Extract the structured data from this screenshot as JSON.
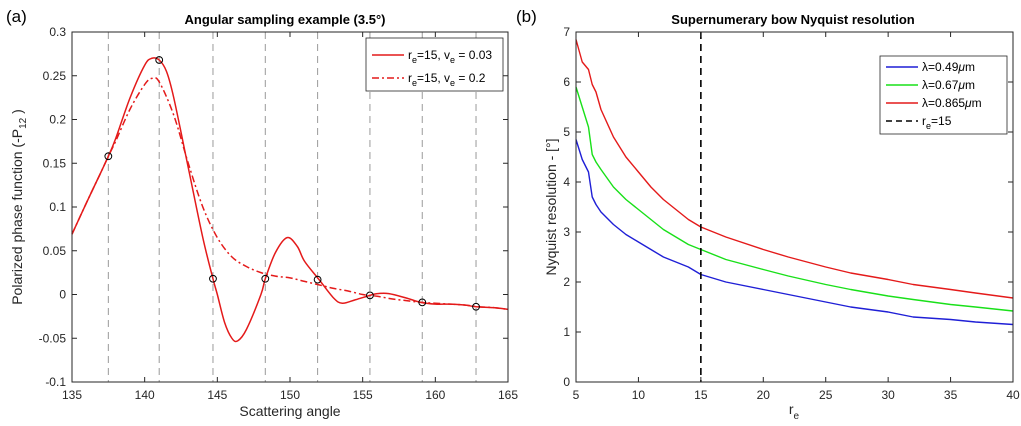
{
  "chart_data": [
    {
      "panel_label": "(a)",
      "type": "line",
      "title": "Angular sampling example (3.5°)",
      "xlabel": "Scattering angle",
      "ylabel_main": "Polarized phase function (-P",
      "ylabel_sub": "12",
      "ylabel_end": " )",
      "xlim": [
        135,
        165
      ],
      "ylim": [
        -0.1,
        0.3
      ],
      "xticks": [
        135,
        140,
        145,
        150,
        155,
        160,
        165
      ],
      "yticks": [
        -0.1,
        -0.05,
        0,
        0.05,
        0.1,
        0.15,
        0.2,
        0.25,
        0.3
      ],
      "ytick_labels": [
        "-0.1",
        "-0.05",
        "0",
        "0.05",
        "0.1",
        "0.15",
        "0.2",
        "0.25",
        "0.3"
      ],
      "grid": false,
      "legend_position": "top-right",
      "series": [
        {
          "legend": {
            "a": "r",
            "a_sub": "e",
            "b": "=15, v",
            "b_sub": "e",
            "c": " = 0.03"
          },
          "style": "solid",
          "color": "#e41a1a",
          "x": [
            135,
            136,
            137,
            137.5,
            138,
            139,
            140,
            140.5,
            141,
            141.5,
            142,
            143,
            144,
            144.7,
            145,
            145.5,
            146,
            146.4,
            147,
            148,
            148.3,
            149,
            149.8,
            150.5,
            151,
            152,
            153,
            153.6,
            154.5,
            155.5,
            156,
            156.8,
            158,
            159,
            160,
            161,
            162,
            162.8,
            164,
            165
          ],
          "y": [
            0.069,
            0.105,
            0.14,
            0.158,
            0.178,
            0.225,
            0.262,
            0.27,
            0.268,
            0.255,
            0.225,
            0.145,
            0.065,
            0.018,
            0.0,
            -0.032,
            -0.05,
            -0.053,
            -0.04,
            0.0,
            0.018,
            0.048,
            0.065,
            0.055,
            0.038,
            0.017,
            -0.004,
            -0.01,
            -0.006,
            -0.001,
            0.001,
            0.001,
            -0.004,
            -0.009,
            -0.011,
            -0.011,
            -0.012,
            -0.014,
            -0.015,
            -0.017
          ]
        },
        {
          "legend": {
            "a": "r",
            "a_sub": "e",
            "b": "=15, v",
            "b_sub": "e",
            "c": " = 0.2"
          },
          "style": "dashdot",
          "color": "#e41a1a",
          "x": [
            135,
            136,
            137,
            137.5,
            138,
            139,
            140,
            140.5,
            141,
            142,
            143,
            144,
            145,
            146,
            147,
            148,
            149,
            150,
            151,
            152,
            153,
            154,
            155,
            156,
            157,
            158,
            159,
            160,
            161,
            162,
            163,
            164,
            165
          ],
          "y": [
            0.069,
            0.105,
            0.14,
            0.158,
            0.175,
            0.212,
            0.24,
            0.247,
            0.243,
            0.205,
            0.15,
            0.1,
            0.065,
            0.043,
            0.032,
            0.025,
            0.021,
            0.019,
            0.015,
            0.011,
            0.007,
            0.004,
            0.0,
            -0.002,
            -0.005,
            -0.007,
            -0.009,
            -0.01,
            -0.011,
            -0.012,
            -0.014,
            -0.015,
            -0.017
          ]
        }
      ],
      "vlines": [
        137.5,
        141,
        144.7,
        148.3,
        151.9,
        155.5,
        159.1,
        162.8
      ],
      "markers": {
        "x": [
          137.5,
          141,
          144.7,
          148.3,
          151.9,
          155.5,
          159.1,
          162.8
        ],
        "y": [
          0.158,
          0.268,
          0.018,
          0.018,
          0.017,
          -0.001,
          -0.009,
          -0.014
        ]
      }
    },
    {
      "panel_label": "(b)",
      "type": "line",
      "title": "Supernumerary bow Nyquist resolution",
      "xlabel_main": "r",
      "xlabel_sub": "e",
      "ylabel": "Nyquist resolution - [°]",
      "xlim": [
        5,
        40
      ],
      "ylim": [
        0,
        7
      ],
      "xticks": [
        5,
        10,
        15,
        20,
        25,
        30,
        35,
        40
      ],
      "yticks": [
        0,
        1,
        2,
        3,
        4,
        5,
        6,
        7
      ],
      "ytick_labels": [
        "0",
        "1",
        "2",
        "3",
        "4",
        "5",
        "6",
        "7"
      ],
      "grid": false,
      "legend_position": "top-right",
      "series": [
        {
          "legend": {
            "a": "λ=0.49",
            "b": "μ",
            "c": "m"
          },
          "color": "#1f1fd6",
          "x": [
            5,
            5.5,
            6,
            6.3,
            6.6,
            7,
            8,
            9,
            10,
            11,
            12,
            13,
            14,
            15,
            17,
            20,
            22,
            25,
            27,
            30,
            32,
            35,
            37,
            40
          ],
          "y": [
            4.85,
            4.45,
            4.2,
            3.7,
            3.55,
            3.4,
            3.15,
            2.95,
            2.8,
            2.65,
            2.5,
            2.4,
            2.3,
            2.15,
            2.0,
            1.85,
            1.75,
            1.6,
            1.5,
            1.4,
            1.3,
            1.25,
            1.2,
            1.15
          ]
        },
        {
          "legend": {
            "a": "λ=0.67",
            "b": "μ",
            "c": "m"
          },
          "color": "#19e019",
          "x": [
            5,
            5.5,
            6,
            6.3,
            6.6,
            7,
            8,
            9,
            10,
            11,
            12,
            13,
            14,
            15,
            17,
            20,
            22,
            25,
            27,
            30,
            32,
            35,
            37,
            40
          ],
          "y": [
            5.9,
            5.5,
            5.1,
            4.55,
            4.4,
            4.25,
            3.9,
            3.65,
            3.45,
            3.25,
            3.05,
            2.9,
            2.75,
            2.65,
            2.45,
            2.25,
            2.12,
            1.95,
            1.85,
            1.72,
            1.65,
            1.55,
            1.5,
            1.42
          ]
        },
        {
          "legend": {
            "a": "λ=0.865",
            "b": "μ",
            "c": "m"
          },
          "color": "#e41a1a",
          "x": [
            5,
            5.5,
            6,
            6.3,
            6.6,
            7,
            8,
            9,
            10,
            11,
            12,
            13,
            14,
            15,
            17,
            20,
            22,
            25,
            27,
            30,
            32,
            35,
            37,
            40
          ],
          "y": [
            6.85,
            6.4,
            6.25,
            5.95,
            5.8,
            5.45,
            4.9,
            4.5,
            4.2,
            3.9,
            3.65,
            3.45,
            3.25,
            3.1,
            2.9,
            2.65,
            2.5,
            2.3,
            2.18,
            2.05,
            1.95,
            1.85,
            1.78,
            1.68
          ]
        }
      ],
      "vline": {
        "x": 15,
        "color": "#000000",
        "style": "dashed"
      },
      "vline_legend": {
        "a": "r",
        "a_sub": "e",
        "b": "=15"
      }
    }
  ]
}
